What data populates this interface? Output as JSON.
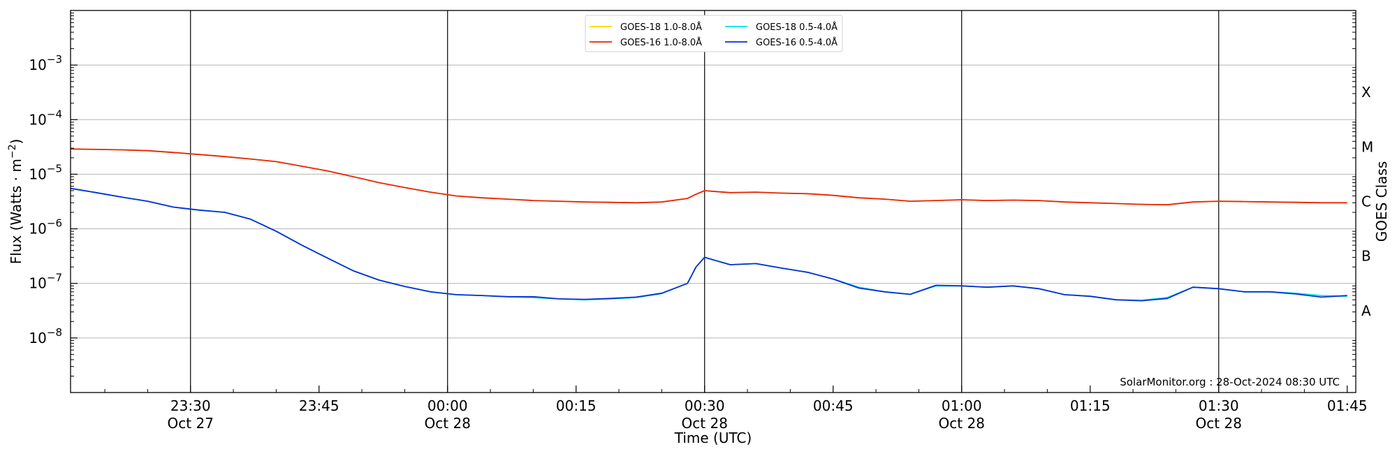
{
  "chart_data": {
    "type": "line",
    "xlabel": "Time (UTC)",
    "ylabel_main": "Flux (Watts · m",
    "ylabel_sup": "−2",
    "ylabel_close": ")",
    "right_label": "GOES Class",
    "credit": "SolarMonitor.org : 28-Oct-2024 08:30 UTC",
    "y_scale": "log",
    "ylim": [
      1e-09,
      0.01
    ],
    "xlim": [
      "23:16",
      "01:46"
    ],
    "y_ticks": [
      {
        "value": 1e-08,
        "base": "10",
        "exp": "−8"
      },
      {
        "value": 1e-07,
        "base": "10",
        "exp": "−7"
      },
      {
        "value": 1e-06,
        "base": "10",
        "exp": "−6"
      },
      {
        "value": 1e-05,
        "base": "10",
        "exp": "−5"
      },
      {
        "value": 0.0001,
        "base": "10",
        "exp": "−4"
      },
      {
        "value": 0.001,
        "base": "10",
        "exp": "−3"
      }
    ],
    "x_ticks": [
      {
        "time": "23:30",
        "time_label": "23:30",
        "date_label": "Oct 27",
        "vline": true
      },
      {
        "time": "23:45",
        "time_label": "23:45",
        "date_label": "",
        "vline": false
      },
      {
        "time": "00:00",
        "time_label": "00:00",
        "date_label": "Oct 28",
        "vline": true
      },
      {
        "time": "00:15",
        "time_label": "00:15",
        "date_label": "",
        "vline": false
      },
      {
        "time": "00:30",
        "time_label": "00:30",
        "date_label": "Oct 28",
        "vline": true
      },
      {
        "time": "00:45",
        "time_label": "00:45",
        "date_label": "",
        "vline": false
      },
      {
        "time": "01:00",
        "time_label": "01:00",
        "date_label": "Oct 28",
        "vline": true
      },
      {
        "time": "01:15",
        "time_label": "01:15",
        "date_label": "",
        "vline": false
      },
      {
        "time": "01:30",
        "time_label": "01:30",
        "date_label": "Oct 28",
        "vline": true
      },
      {
        "time": "01:45",
        "time_label": "01:45",
        "date_label": "",
        "vline": false
      }
    ],
    "goes_classes": [
      {
        "label": "X",
        "value": 0.000316
      },
      {
        "label": "M",
        "value": 3.16e-05
      },
      {
        "label": "C",
        "value": 3.16e-06
      },
      {
        "label": "B",
        "value": 3.16e-07
      },
      {
        "label": "A",
        "value": 3.16e-08
      }
    ],
    "grid": true,
    "legend_position": "top-center",
    "series": [
      {
        "name": "GOES-18 1.0-8.0Å",
        "color": "#ffd700",
        "x": [
          "23:16",
          "23:19",
          "23:22",
          "23:25",
          "23:28",
          "23:31",
          "23:34",
          "23:37",
          "23:40",
          "23:43",
          "23:46",
          "23:49",
          "23:52",
          "23:55",
          "23:58",
          "00:01",
          "00:04",
          "00:07",
          "00:10",
          "00:13",
          "00:16",
          "00:19",
          "00:22",
          "00:25",
          "00:28",
          "00:29",
          "00:30",
          "00:33",
          "00:36",
          "00:39",
          "00:42",
          "00:45",
          "00:48",
          "00:51",
          "00:54",
          "00:57",
          "01:00",
          "01:03",
          "01:06",
          "01:09",
          "01:12",
          "01:15",
          "01:18",
          "01:21",
          "01:24",
          "01:27",
          "01:30",
          "01:33",
          "01:36",
          "01:39",
          "01:42",
          "01:45"
        ],
        "values": [
          2.9e-05,
          2.85e-05,
          2.8e-05,
          2.7e-05,
          2.5e-05,
          2.3e-05,
          2.1e-05,
          1.9e-05,
          1.7e-05,
          1.4e-05,
          1.15e-05,
          9e-06,
          7e-06,
          5.7e-06,
          4.7e-06,
          4e-06,
          3.7e-06,
          3.5e-06,
          3.3e-06,
          3.2e-06,
          3.1e-06,
          3.05e-06,
          3e-06,
          3.1e-06,
          3.6e-06,
          4.3e-06,
          5e-06,
          4.6e-06,
          4.7e-06,
          4.5e-06,
          4.4e-06,
          4.1e-06,
          3.7e-06,
          3.5e-06,
          3.2e-06,
          3.3e-06,
          3.4e-06,
          3.3e-06,
          3.35e-06,
          3.3e-06,
          3.1e-06,
          3e-06,
          2.9e-06,
          2.8e-06,
          2.75e-06,
          3.1e-06,
          3.2e-06,
          3.15e-06,
          3.1e-06,
          3.05e-06,
          3e-06,
          3e-06
        ]
      },
      {
        "name": "GOES-18 0.5-4.0Å",
        "color": "#00e5ee",
        "x": [
          "23:16",
          "23:19",
          "23:22",
          "23:25",
          "23:28",
          "23:31",
          "23:34",
          "23:37",
          "23:40",
          "23:43",
          "23:46",
          "23:49",
          "23:52",
          "23:55",
          "23:58",
          "00:01",
          "00:04",
          "00:07",
          "00:10",
          "00:13",
          "00:16",
          "00:19",
          "00:22",
          "00:25",
          "00:28",
          "00:29",
          "00:30",
          "00:33",
          "00:36",
          "00:39",
          "00:42",
          "00:45",
          "00:48",
          "00:51",
          "00:54",
          "00:57",
          "01:00",
          "01:03",
          "01:06",
          "01:09",
          "01:12",
          "01:15",
          "01:18",
          "01:21",
          "01:24",
          "01:27",
          "01:30",
          "01:33",
          "01:36",
          "01:39",
          "01:42",
          "01:45"
        ],
        "values": [
          5.5e-06,
          4.6e-06,
          3.8e-06,
          3.2e-06,
          2.5e-06,
          2.2e-06,
          2e-06,
          1.5e-06,
          9e-07,
          5e-07,
          2.9e-07,
          1.7e-07,
          1.15e-07,
          8.8e-08,
          7e-08,
          6.2e-08,
          6e-08,
          5.7e-08,
          5.5e-08,
          5.2e-08,
          5e-08,
          5.2e-08,
          5.5e-08,
          6.5e-08,
          1e-07,
          2e-07,
          3e-07,
          2.2e-07,
          2.3e-07,
          1.9e-07,
          1.6e-07,
          1.2e-07,
          8.5e-08,
          7e-08,
          6.3e-08,
          9e-08,
          9e-08,
          8.5e-08,
          9e-08,
          8e-08,
          6.2e-08,
          5.8e-08,
          5e-08,
          4.9e-08,
          5.5e-08,
          8.5e-08,
          8e-08,
          7e-08,
          7e-08,
          6.6e-08,
          6e-08,
          5.8e-08
        ]
      },
      {
        "name": "GOES-16 1.0-8.0Å",
        "color": "#e8260c",
        "x": [
          "23:16",
          "23:19",
          "23:22",
          "23:25",
          "23:28",
          "23:31",
          "23:34",
          "23:37",
          "23:40",
          "23:43",
          "23:46",
          "23:49",
          "23:52",
          "23:55",
          "23:58",
          "00:01",
          "00:04",
          "00:07",
          "00:10",
          "00:13",
          "00:16",
          "00:19",
          "00:22",
          "00:25",
          "00:28",
          "00:29",
          "00:30",
          "00:33",
          "00:36",
          "00:39",
          "00:42",
          "00:45",
          "00:48",
          "00:51",
          "00:54",
          "00:57",
          "01:00",
          "01:03",
          "01:06",
          "01:09",
          "01:12",
          "01:15",
          "01:18",
          "01:21",
          "01:24",
          "01:27",
          "01:30",
          "01:33",
          "01:36",
          "01:39",
          "01:42",
          "01:45"
        ],
        "values": [
          2.9e-05,
          2.85e-05,
          2.8e-05,
          2.7e-05,
          2.5e-05,
          2.3e-05,
          2.1e-05,
          1.9e-05,
          1.7e-05,
          1.4e-05,
          1.15e-05,
          9e-06,
          7e-06,
          5.7e-06,
          4.7e-06,
          4e-06,
          3.7e-06,
          3.5e-06,
          3.3e-06,
          3.2e-06,
          3.1e-06,
          3.05e-06,
          3e-06,
          3.1e-06,
          3.6e-06,
          4.3e-06,
          5e-06,
          4.6e-06,
          4.7e-06,
          4.5e-06,
          4.4e-06,
          4.1e-06,
          3.7e-06,
          3.5e-06,
          3.2e-06,
          3.3e-06,
          3.4e-06,
          3.3e-06,
          3.35e-06,
          3.3e-06,
          3.1e-06,
          3e-06,
          2.9e-06,
          2.8e-06,
          2.75e-06,
          3.1e-06,
          3.2e-06,
          3.15e-06,
          3.1e-06,
          3.05e-06,
          3e-06,
          3e-06
        ]
      },
      {
        "name": "GOES-16 0.5-4.0Å",
        "color": "#0b2fd4",
        "x": [
          "23:16",
          "23:19",
          "23:22",
          "23:25",
          "23:28",
          "23:31",
          "23:34",
          "23:37",
          "23:40",
          "23:43",
          "23:46",
          "23:49",
          "23:52",
          "23:55",
          "23:58",
          "00:01",
          "00:04",
          "00:07",
          "00:10",
          "00:13",
          "00:16",
          "00:19",
          "00:22",
          "00:25",
          "00:28",
          "00:29",
          "00:30",
          "00:33",
          "00:36",
          "00:39",
          "00:42",
          "00:45",
          "00:48",
          "00:51",
          "00:54",
          "00:57",
          "01:00",
          "01:03",
          "01:06",
          "01:09",
          "01:12",
          "01:15",
          "01:18",
          "01:21",
          "01:24",
          "01:27",
          "01:30",
          "01:33",
          "01:36",
          "01:39",
          "01:42",
          "01:45"
        ],
        "values": [
          5.5e-06,
          4.6e-06,
          3.8e-06,
          3.2e-06,
          2.5e-06,
          2.2e-06,
          2e-06,
          1.5e-06,
          9e-07,
          5e-07,
          2.9e-07,
          1.7e-07,
          1.15e-07,
          8.8e-08,
          7e-08,
          6.2e-08,
          6e-08,
          5.7e-08,
          5.7e-08,
          5.2e-08,
          5.1e-08,
          5.3e-08,
          5.6e-08,
          6.6e-08,
          1e-07,
          2e-07,
          3e-07,
          2.2e-07,
          2.3e-07,
          1.9e-07,
          1.6e-07,
          1.2e-07,
          8.2e-08,
          7e-08,
          6.3e-08,
          9.2e-08,
          9e-08,
          8.5e-08,
          9e-08,
          8e-08,
          6.2e-08,
          5.8e-08,
          5e-08,
          4.8e-08,
          5.3e-08,
          8.5e-08,
          8e-08,
          7e-08,
          7e-08,
          6.4e-08,
          5.6e-08,
          6e-08
        ]
      }
    ]
  },
  "legend": {
    "items": [
      {
        "label": "GOES-18 1.0-8.0Å",
        "color": "#ffd700"
      },
      {
        "label": "GOES-16 1.0-8.0Å",
        "color": "#e8260c"
      },
      {
        "label": "GOES-18 0.5-4.0Å",
        "color": "#00e5ee"
      },
      {
        "label": "GOES-16 0.5-4.0Å",
        "color": "#0b2fd4"
      }
    ]
  }
}
